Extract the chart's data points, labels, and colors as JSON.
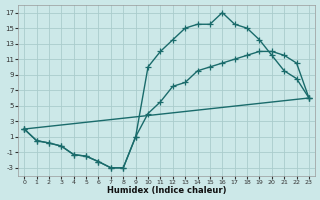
{
  "xlabel": "Humidex (Indice chaleur)",
  "bg_color": "#cce8e8",
  "grid_color": "#aacccc",
  "line_color": "#1a6b6b",
  "xlim": [
    -0.5,
    23.5
  ],
  "ylim": [
    -4.0,
    18.0
  ],
  "xticks": [
    0,
    1,
    2,
    3,
    4,
    5,
    6,
    7,
    8,
    9,
    10,
    11,
    12,
    13,
    14,
    15,
    16,
    17,
    18,
    19,
    20,
    21,
    22,
    23
  ],
  "yticks": [
    -3,
    -1,
    1,
    3,
    5,
    7,
    9,
    11,
    13,
    15,
    17
  ],
  "curve1_x": [
    0,
    1,
    2,
    3,
    4,
    5,
    6,
    7,
    8,
    9,
    10,
    11,
    12,
    13,
    14,
    15,
    16,
    17,
    18,
    19,
    20,
    21,
    22,
    23
  ],
  "curve1_y": [
    2.0,
    0.5,
    0.2,
    -0.2,
    -1.3,
    -1.5,
    -2.2,
    -3.0,
    -3.0,
    1.0,
    4.0,
    5.5,
    7.5,
    8.0,
    9.5,
    10.0,
    10.5,
    11.0,
    11.5,
    12.0,
    12.0,
    11.5,
    10.5,
    6.0
  ],
  "curve2_x": [
    0,
    1,
    2,
    3,
    4,
    5,
    6,
    7,
    8,
    9,
    10,
    11,
    12,
    13,
    14,
    15,
    16,
    17,
    18,
    19,
    20,
    21,
    22,
    23
  ],
  "curve2_y": [
    2.0,
    0.5,
    0.2,
    -0.2,
    -1.3,
    -1.5,
    -2.2,
    -3.0,
    -3.0,
    1.0,
    10.0,
    12.0,
    13.5,
    15.0,
    15.5,
    15.5,
    17.0,
    15.5,
    15.0,
    13.5,
    11.5,
    9.5,
    8.5,
    6.0
  ],
  "curve3_x": [
    0,
    23
  ],
  "curve3_y": [
    2.0,
    6.0
  ],
  "marker": "+",
  "markersize": 4,
  "linewidth": 1.0
}
